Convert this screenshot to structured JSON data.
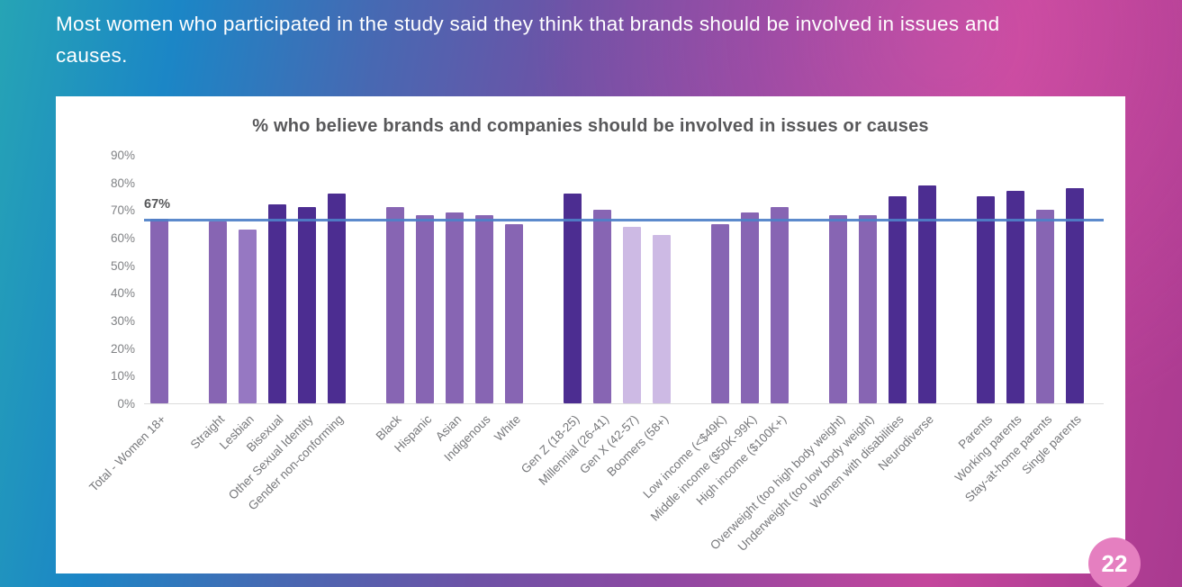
{
  "intro": {
    "text": "Most women who participated in the study said they think that brands should be involved in issues and causes."
  },
  "page_number": "22",
  "theme": {
    "badge_color": "#e57fc0",
    "card_color": "#ffffff"
  },
  "chart_data": {
    "type": "bar",
    "title": "% who believe brands and companies should be involved in issues or causes",
    "xlabel": "",
    "ylabel": "",
    "ylim": [
      0,
      90
    ],
    "grid": false,
    "y_ticks": [
      "90%",
      "80%",
      "70%",
      "60%",
      "50%",
      "40%",
      "30%",
      "20%",
      "10%",
      "0%"
    ],
    "reference_line": {
      "value": 67,
      "label": "67%",
      "color": "#4e80c8"
    },
    "colors": {
      "dark": "#4c2d91",
      "medium": "#8765b3",
      "medium_light": "#9678c2",
      "light": "#cdbae4"
    },
    "groups": [
      {
        "name": "total",
        "bars": [
          {
            "label": "Total - Women 18+",
            "value": 67,
            "tone": "medium"
          }
        ]
      },
      {
        "name": "sexual-identity",
        "bars": [
          {
            "label": "Straight",
            "value": 66,
            "tone": "medium"
          },
          {
            "label": "Lesbian",
            "value": 63,
            "tone": "medium_light"
          },
          {
            "label": "Bisexual",
            "value": 72,
            "tone": "dark"
          },
          {
            "label": "Other Sexual Identity",
            "value": 71,
            "tone": "dark"
          },
          {
            "label": "Gender non-conforming",
            "value": 76,
            "tone": "dark"
          }
        ]
      },
      {
        "name": "race-ethnicity",
        "bars": [
          {
            "label": "Black",
            "value": 71,
            "tone": "medium"
          },
          {
            "label": "Hispanic",
            "value": 68,
            "tone": "medium"
          },
          {
            "label": "Asian",
            "value": 69,
            "tone": "medium"
          },
          {
            "label": "Indigenous",
            "value": 68,
            "tone": "medium"
          },
          {
            "label": "White",
            "value": 65,
            "tone": "medium"
          }
        ]
      },
      {
        "name": "generation",
        "bars": [
          {
            "label": "Gen Z (18-25)",
            "value": 76,
            "tone": "dark"
          },
          {
            "label": "Millennial (26-41)",
            "value": 70,
            "tone": "medium"
          },
          {
            "label": "Gen X (42-57)",
            "value": 64,
            "tone": "light"
          },
          {
            "label": "Boomers (58+)",
            "value": 61,
            "tone": "light"
          }
        ]
      },
      {
        "name": "income",
        "bars": [
          {
            "label": "Low income (<$49K)",
            "value": 65,
            "tone": "medium"
          },
          {
            "label": "Middle income ($50K-99K)",
            "value": 69,
            "tone": "medium"
          },
          {
            "label": "High income ($100K+)",
            "value": 71,
            "tone": "medium"
          }
        ]
      },
      {
        "name": "body-ability",
        "bars": [
          {
            "label": "Overweight (too high body weight)",
            "value": 68,
            "tone": "medium"
          },
          {
            "label": "Underweight (too low body weight)",
            "value": 68,
            "tone": "medium"
          },
          {
            "label": "Women with disabilities",
            "value": 75,
            "tone": "dark"
          },
          {
            "label": "Neurodiverse",
            "value": 79,
            "tone": "dark"
          }
        ]
      },
      {
        "name": "parenthood",
        "bars": [
          {
            "label": "Parents",
            "value": 75,
            "tone": "dark"
          },
          {
            "label": "Working parents",
            "value": 77,
            "tone": "dark"
          },
          {
            "label": "Stay-at-home parents",
            "value": 70,
            "tone": "medium"
          },
          {
            "label": "Single parents",
            "value": 78,
            "tone": "dark"
          }
        ]
      }
    ]
  }
}
